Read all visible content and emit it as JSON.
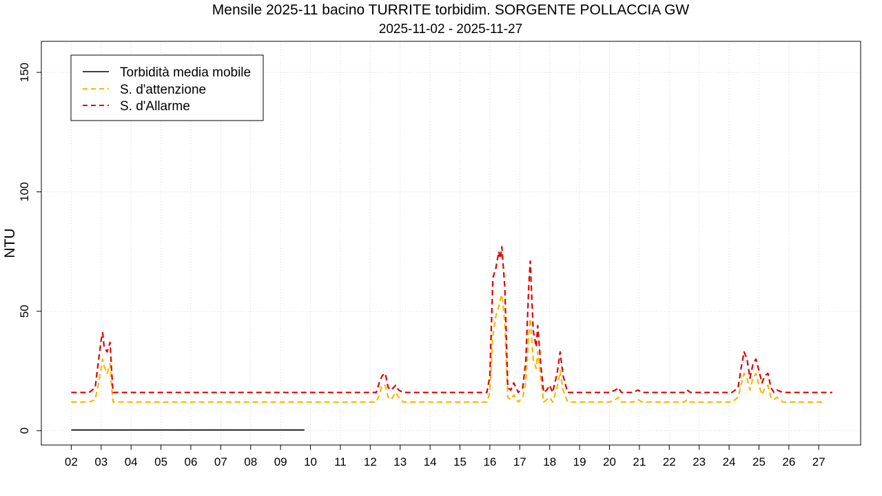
{
  "chart_data": {
    "type": "line",
    "title": "Mensile 2025-11 bacino TURRITE torbidim. SORGENTE POLLACCIA GW",
    "subtitle": "2025-11-02 - 2025-11-27",
    "xlabel": "",
    "ylabel": "NTU",
    "ylim": [
      -6,
      163
    ],
    "xlim": [
      1.0,
      28.4
    ],
    "yticks": [
      0,
      50,
      100,
      150
    ],
    "ytick_labels": [
      "0",
      "50",
      "100",
      "150"
    ],
    "xticks": [
      2,
      3,
      4,
      5,
      6,
      7,
      8,
      9,
      10,
      11,
      12,
      13,
      14,
      15,
      16,
      17,
      18,
      19,
      20,
      21,
      22,
      23,
      24,
      25,
      26,
      27
    ],
    "xtick_labels": [
      "02",
      "03",
      "04",
      "05",
      "06",
      "07",
      "08",
      "09",
      "10",
      "11",
      "12",
      "13",
      "14",
      "15",
      "16",
      "17",
      "18",
      "19",
      "20",
      "21",
      "22",
      "23",
      "24",
      "25",
      "26",
      "27"
    ],
    "grid": true,
    "legend_position": "top-left",
    "series": [
      {
        "name": "Torbidità media mobile",
        "color": "#000000",
        "style": "solid",
        "x": [
          2.0,
          9.8
        ],
        "y": [
          0.3,
          0.3
        ]
      },
      {
        "name": "S. d'attenzione",
        "color": "#f5b800",
        "style": "dashed",
        "x": [
          2.0,
          2.6,
          2.8,
          2.9,
          3.0,
          3.05,
          3.1,
          3.2,
          3.3,
          3.35,
          3.4,
          3.6,
          12.2,
          12.3,
          12.4,
          12.5,
          12.6,
          12.7,
          12.85,
          12.95,
          13.1,
          15.9,
          16.0,
          16.1,
          16.2,
          16.3,
          16.35,
          16.4,
          16.5,
          16.6,
          16.7,
          16.8,
          16.95,
          17.1,
          17.2,
          17.3,
          17.35,
          17.45,
          17.55,
          17.6,
          17.7,
          17.8,
          17.9,
          18.0,
          18.1,
          18.25,
          18.35,
          18.45,
          18.6,
          20.0,
          20.2,
          20.3,
          20.4,
          20.8,
          20.95,
          21.1,
          22.5,
          22.6,
          22.7,
          24.1,
          24.3,
          24.4,
          24.5,
          24.6,
          24.7,
          24.8,
          24.9,
          25.0,
          25.1,
          25.2,
          25.3,
          25.4,
          25.5,
          25.6,
          25.8,
          27.2
        ],
        "y": [
          12,
          12,
          13,
          19,
          26,
          30,
          27,
          24,
          28,
          18,
          12,
          12,
          12,
          15,
          19,
          19,
          14,
          13,
          16,
          14,
          12,
          12,
          16,
          40,
          48,
          52,
          55,
          57,
          45,
          14,
          13,
          15,
          12,
          14,
          20,
          40,
          47,
          30,
          26,
          33,
          22,
          12,
          13,
          14,
          12,
          18,
          25,
          17,
          12,
          12,
          13,
          14,
          12,
          12,
          13,
          12,
          12,
          13,
          12,
          12,
          14,
          19,
          24,
          22,
          17,
          22,
          24,
          19,
          15,
          18,
          19,
          14,
          13,
          14,
          12,
          12
        ]
      },
      {
        "name": "S. d'Allarme",
        "color": "#dd0000",
        "style": "dashed",
        "x": [
          2.0,
          2.6,
          2.8,
          2.9,
          3.0,
          3.05,
          3.1,
          3.2,
          3.3,
          3.35,
          3.4,
          3.6,
          12.2,
          12.3,
          12.4,
          12.5,
          12.6,
          12.7,
          12.85,
          12.95,
          13.1,
          15.9,
          16.0,
          16.1,
          16.2,
          16.3,
          16.35,
          16.4,
          16.5,
          16.6,
          16.7,
          16.8,
          16.95,
          17.1,
          17.2,
          17.3,
          17.35,
          17.45,
          17.55,
          17.6,
          17.7,
          17.8,
          17.9,
          18.0,
          18.1,
          18.25,
          18.35,
          18.45,
          18.6,
          20.0,
          20.2,
          20.3,
          20.4,
          20.8,
          20.95,
          21.1,
          22.5,
          22.6,
          22.7,
          24.1,
          24.3,
          24.4,
          24.5,
          24.6,
          24.7,
          24.8,
          24.9,
          25.0,
          25.1,
          25.2,
          25.3,
          25.4,
          25.5,
          25.6,
          25.8,
          27.45
        ],
        "y": [
          16,
          16,
          18,
          28,
          38,
          41,
          35,
          33,
          37,
          25,
          16,
          16,
          16,
          20,
          23,
          24,
          18,
          17,
          19,
          17,
          16,
          16,
          23,
          64,
          68,
          75,
          72,
          77,
          60,
          18,
          17,
          20,
          16,
          18,
          29,
          60,
          71,
          42,
          35,
          44,
          28,
          16,
          17,
          19,
          16,
          24,
          33,
          23,
          16,
          16,
          17,
          18,
          16,
          16,
          17,
          16,
          16,
          17,
          16,
          16,
          18,
          26,
          33,
          30,
          22,
          28,
          30,
          25,
          20,
          23,
          24,
          18,
          16,
          17,
          16,
          16
        ]
      }
    ]
  }
}
